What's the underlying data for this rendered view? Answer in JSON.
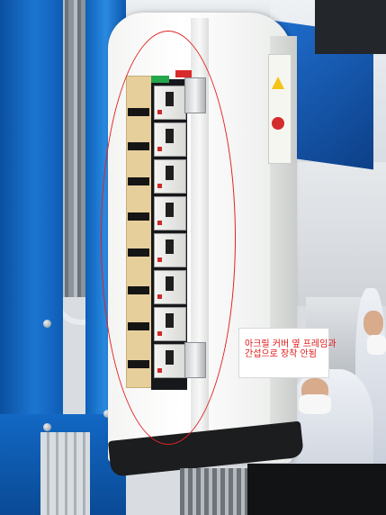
{
  "annotation": {
    "caption_line1": "아크릴 커버 옆 프레임과",
    "caption_line2": "간섭으로 장착 안됨",
    "caption_color": "#e01818",
    "ellipse_color": "#e12222"
  },
  "colors": {
    "frame_blue": "#1b76d1",
    "enclosure_white": "#ffffff",
    "label_strip_tan": "#e7cf9c"
  },
  "breaker_count": 8
}
